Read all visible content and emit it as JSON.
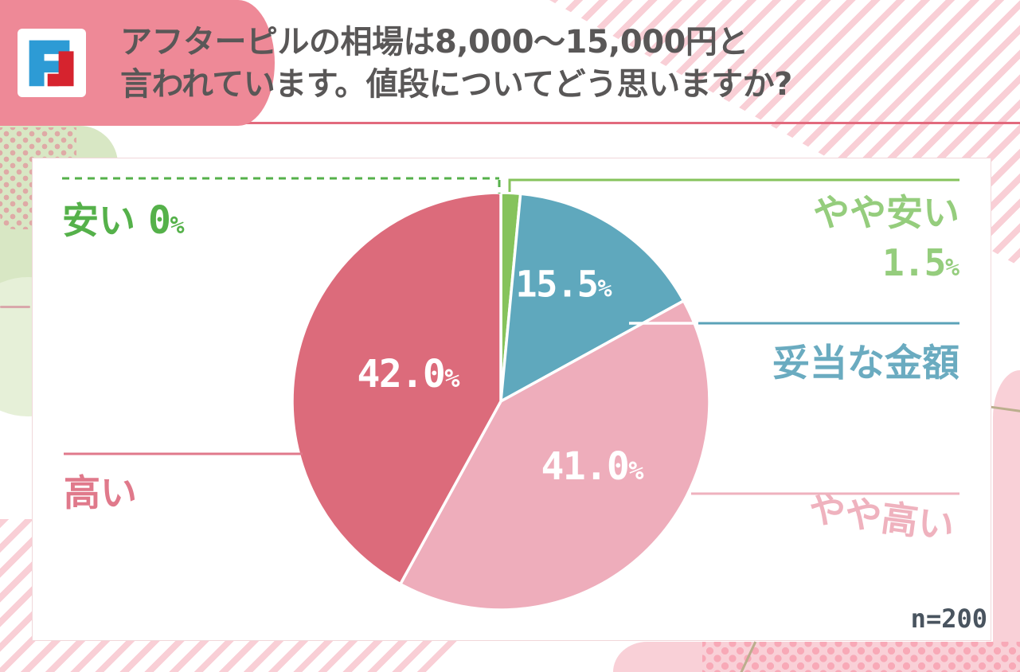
{
  "header": {
    "title_line1": "アフターピルの相場は8,000〜15,000円と",
    "title_line2": "言われています。値段についてどう思いますか?"
  },
  "chart_data": {
    "type": "pie",
    "title": "アフターピルの相場は8,000〜15,000円と言われています。値段についてどう思いますか?",
    "labels": [
      "安い",
      "やや安い",
      "妥当な金額",
      "やや高い",
      "高い"
    ],
    "keys": [
      "yasui",
      "yaya-yasui",
      "datou-na-kingaku",
      "yaya-takai",
      "takai"
    ],
    "values": [
      0,
      1.5,
      15.5,
      41.0,
      42.0
    ],
    "colors": [
      "#55b14a",
      "#86c35c",
      "#5fa8bd",
      "#eeadbb",
      "#dc6b7b"
    ],
    "start_angle_deg": -90,
    "direction": "clockwise",
    "sample_note": "n=200",
    "legend_position": "callouts"
  },
  "callouts": {
    "cheap": {
      "label": "安い",
      "value": "0",
      "pct": "%"
    },
    "somewhat_cheap": {
      "label": "やや安い",
      "value": "1.5",
      "pct": "%"
    },
    "fair": {
      "label": "妥当な金額"
    },
    "somewhat_expensive": {
      "label": "やや高い"
    },
    "expensive": {
      "label": "高い"
    }
  },
  "pie_value_labels": {
    "fair": {
      "num": "15.5",
      "pct": "%"
    },
    "somewhat_expensive": {
      "num": "41.0",
      "pct": "%"
    },
    "expensive": {
      "num": "42.0",
      "pct": "%"
    }
  },
  "footnote": "n=200",
  "colors": {
    "header_bar": "#ee8997",
    "header_rule": "#e26a7d",
    "title_text": "#595757",
    "logo_blue": "#2d9bd5",
    "logo_red": "#d6232e",
    "cheap_green": "#55b14a",
    "somewhat_cheap_green": "#95cd7d",
    "fair_teal": "#6aabc0",
    "somewhat_expensive_pink": "#efb2be",
    "expensive_rose": "#e0798b",
    "footnote_text": "#49545f"
  }
}
